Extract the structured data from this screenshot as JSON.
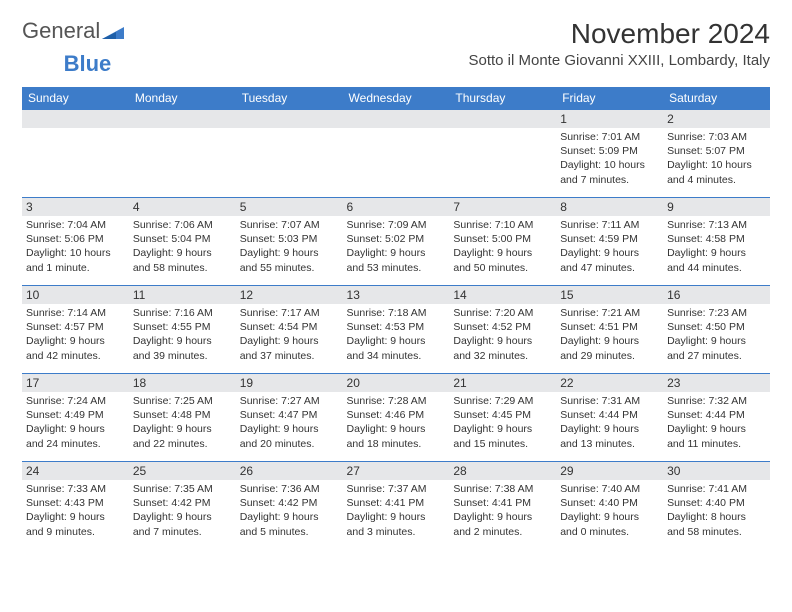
{
  "brand": {
    "part1": "General",
    "part2": "Blue"
  },
  "title": "November 2024",
  "location": "Sotto il Monte Giovanni XXIII, Lombardy, Italy",
  "colors": {
    "header_bg": "#3d7cc9",
    "header_text": "#ffffff",
    "daynum_bg": "#e6e7e9",
    "border": "#3d7cc9",
    "body_text": "#333333",
    "page_bg": "#ffffff"
  },
  "weekdays": [
    "Sunday",
    "Monday",
    "Tuesday",
    "Wednesday",
    "Thursday",
    "Friday",
    "Saturday"
  ],
  "weeks": [
    [
      null,
      null,
      null,
      null,
      null,
      {
        "n": "1",
        "sunrise": "Sunrise: 7:01 AM",
        "sunset": "Sunset: 5:09 PM",
        "daylight": "Daylight: 10 hours and 7 minutes."
      },
      {
        "n": "2",
        "sunrise": "Sunrise: 7:03 AM",
        "sunset": "Sunset: 5:07 PM",
        "daylight": "Daylight: 10 hours and 4 minutes."
      }
    ],
    [
      {
        "n": "3",
        "sunrise": "Sunrise: 7:04 AM",
        "sunset": "Sunset: 5:06 PM",
        "daylight": "Daylight: 10 hours and 1 minute."
      },
      {
        "n": "4",
        "sunrise": "Sunrise: 7:06 AM",
        "sunset": "Sunset: 5:04 PM",
        "daylight": "Daylight: 9 hours and 58 minutes."
      },
      {
        "n": "5",
        "sunrise": "Sunrise: 7:07 AM",
        "sunset": "Sunset: 5:03 PM",
        "daylight": "Daylight: 9 hours and 55 minutes."
      },
      {
        "n": "6",
        "sunrise": "Sunrise: 7:09 AM",
        "sunset": "Sunset: 5:02 PM",
        "daylight": "Daylight: 9 hours and 53 minutes."
      },
      {
        "n": "7",
        "sunrise": "Sunrise: 7:10 AM",
        "sunset": "Sunset: 5:00 PM",
        "daylight": "Daylight: 9 hours and 50 minutes."
      },
      {
        "n": "8",
        "sunrise": "Sunrise: 7:11 AM",
        "sunset": "Sunset: 4:59 PM",
        "daylight": "Daylight: 9 hours and 47 minutes."
      },
      {
        "n": "9",
        "sunrise": "Sunrise: 7:13 AM",
        "sunset": "Sunset: 4:58 PM",
        "daylight": "Daylight: 9 hours and 44 minutes."
      }
    ],
    [
      {
        "n": "10",
        "sunrise": "Sunrise: 7:14 AM",
        "sunset": "Sunset: 4:57 PM",
        "daylight": "Daylight: 9 hours and 42 minutes."
      },
      {
        "n": "11",
        "sunrise": "Sunrise: 7:16 AM",
        "sunset": "Sunset: 4:55 PM",
        "daylight": "Daylight: 9 hours and 39 minutes."
      },
      {
        "n": "12",
        "sunrise": "Sunrise: 7:17 AM",
        "sunset": "Sunset: 4:54 PM",
        "daylight": "Daylight: 9 hours and 37 minutes."
      },
      {
        "n": "13",
        "sunrise": "Sunrise: 7:18 AM",
        "sunset": "Sunset: 4:53 PM",
        "daylight": "Daylight: 9 hours and 34 minutes."
      },
      {
        "n": "14",
        "sunrise": "Sunrise: 7:20 AM",
        "sunset": "Sunset: 4:52 PM",
        "daylight": "Daylight: 9 hours and 32 minutes."
      },
      {
        "n": "15",
        "sunrise": "Sunrise: 7:21 AM",
        "sunset": "Sunset: 4:51 PM",
        "daylight": "Daylight: 9 hours and 29 minutes."
      },
      {
        "n": "16",
        "sunrise": "Sunrise: 7:23 AM",
        "sunset": "Sunset: 4:50 PM",
        "daylight": "Daylight: 9 hours and 27 minutes."
      }
    ],
    [
      {
        "n": "17",
        "sunrise": "Sunrise: 7:24 AM",
        "sunset": "Sunset: 4:49 PM",
        "daylight": "Daylight: 9 hours and 24 minutes."
      },
      {
        "n": "18",
        "sunrise": "Sunrise: 7:25 AM",
        "sunset": "Sunset: 4:48 PM",
        "daylight": "Daylight: 9 hours and 22 minutes."
      },
      {
        "n": "19",
        "sunrise": "Sunrise: 7:27 AM",
        "sunset": "Sunset: 4:47 PM",
        "daylight": "Daylight: 9 hours and 20 minutes."
      },
      {
        "n": "20",
        "sunrise": "Sunrise: 7:28 AM",
        "sunset": "Sunset: 4:46 PM",
        "daylight": "Daylight: 9 hours and 18 minutes."
      },
      {
        "n": "21",
        "sunrise": "Sunrise: 7:29 AM",
        "sunset": "Sunset: 4:45 PM",
        "daylight": "Daylight: 9 hours and 15 minutes."
      },
      {
        "n": "22",
        "sunrise": "Sunrise: 7:31 AM",
        "sunset": "Sunset: 4:44 PM",
        "daylight": "Daylight: 9 hours and 13 minutes."
      },
      {
        "n": "23",
        "sunrise": "Sunrise: 7:32 AM",
        "sunset": "Sunset: 4:44 PM",
        "daylight": "Daylight: 9 hours and 11 minutes."
      }
    ],
    [
      {
        "n": "24",
        "sunrise": "Sunrise: 7:33 AM",
        "sunset": "Sunset: 4:43 PM",
        "daylight": "Daylight: 9 hours and 9 minutes."
      },
      {
        "n": "25",
        "sunrise": "Sunrise: 7:35 AM",
        "sunset": "Sunset: 4:42 PM",
        "daylight": "Daylight: 9 hours and 7 minutes."
      },
      {
        "n": "26",
        "sunrise": "Sunrise: 7:36 AM",
        "sunset": "Sunset: 4:42 PM",
        "daylight": "Daylight: 9 hours and 5 minutes."
      },
      {
        "n": "27",
        "sunrise": "Sunrise: 7:37 AM",
        "sunset": "Sunset: 4:41 PM",
        "daylight": "Daylight: 9 hours and 3 minutes."
      },
      {
        "n": "28",
        "sunrise": "Sunrise: 7:38 AM",
        "sunset": "Sunset: 4:41 PM",
        "daylight": "Daylight: 9 hours and 2 minutes."
      },
      {
        "n": "29",
        "sunrise": "Sunrise: 7:40 AM",
        "sunset": "Sunset: 4:40 PM",
        "daylight": "Daylight: 9 hours and 0 minutes."
      },
      {
        "n": "30",
        "sunrise": "Sunrise: 7:41 AM",
        "sunset": "Sunset: 4:40 PM",
        "daylight": "Daylight: 8 hours and 58 minutes."
      }
    ]
  ]
}
